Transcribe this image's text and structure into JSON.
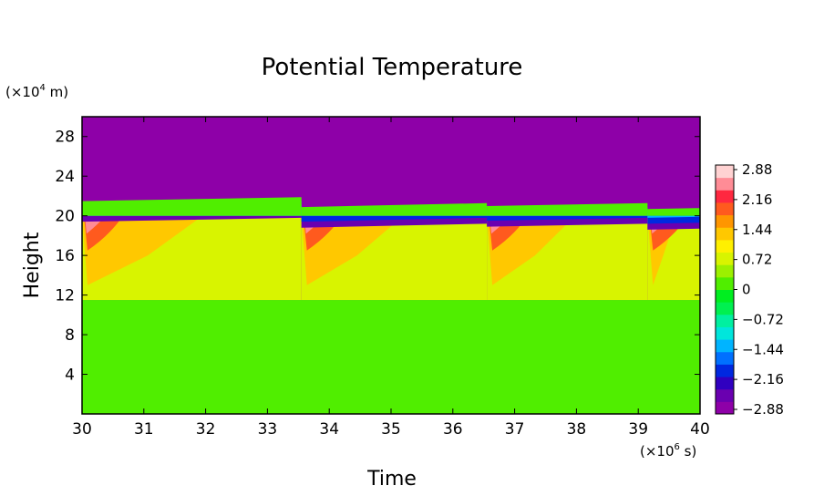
{
  "chart_data": {
    "type": "heatmap",
    "title": "Potential Temperature",
    "xlabel": "Time",
    "ylabel": "Height",
    "x_unit_prefix": "(×10",
    "x_unit_exp": "6",
    "x_unit_suffix": " s)",
    "y_unit_prefix": "(×10",
    "y_unit_exp": "4",
    "y_unit_suffix": " m)",
    "xlim": [
      30,
      40
    ],
    "ylim": [
      0,
      30
    ],
    "x_ticks": [
      30,
      31,
      32,
      33,
      34,
      35,
      36,
      37,
      38,
      39,
      40
    ],
    "y_ticks": [
      4,
      8,
      12,
      16,
      20,
      24,
      28
    ],
    "colorbar": {
      "min": -2.88,
      "max": 2.88,
      "tick_labels": [
        "2.88",
        "2.16",
        "1.44",
        "0.72",
        "0",
        "−0.72",
        "−1.44",
        "−2.16",
        "−2.88"
      ],
      "colors": [
        "#8e00a8",
        "#6a00b0",
        "#3000c0",
        "#0028e0",
        "#0070ff",
        "#00b4ff",
        "#00e6dc",
        "#00f0a0",
        "#00f050",
        "#00ee20",
        "#50ee00",
        "#9cf000",
        "#d8f400",
        "#fff000",
        "#ffc800",
        "#ff9600",
        "#ff5a1e",
        "#ff2840",
        "#ff8c96",
        "#ffd2d2"
      ]
    },
    "regimes": [
      {
        "start": 30.0,
        "end": 33.55,
        "tropopause_start": 21.6,
        "tropopause_end": 22.0
      },
      {
        "start": 33.55,
        "end": 36.55,
        "tropopause_start": 21.0,
        "tropopause_end": 21.4
      },
      {
        "start": 36.55,
        "end": 39.15,
        "tropopause_start": 21.1,
        "tropopause_end": 21.4
      },
      {
        "start": 39.15,
        "end": 40.0,
        "tropopause_start": 20.8,
        "tropopause_end": 20.9
      }
    ],
    "layers": {
      "stratosphere_value": -2.88,
      "upper_band_top": 20,
      "upper_band_bottom": 11.5,
      "upper_band_value": 0.7,
      "lower_value": 0.25,
      "warm_core_value": 2.4
    }
  }
}
